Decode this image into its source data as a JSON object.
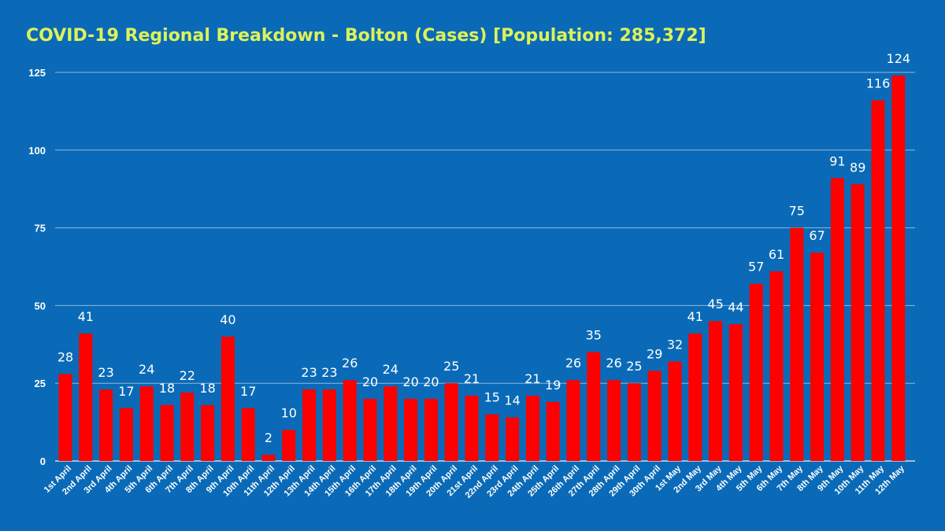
{
  "chart_data": {
    "type": "bar",
    "title": "COVID-19 Regional Breakdown - Bolton (Cases) [Population: 285,372]",
    "xlabel": "",
    "ylabel": "",
    "ylim": [
      0,
      125
    ],
    "yticks": [
      0,
      25,
      50,
      75,
      100,
      125
    ],
    "grid": true,
    "categories": [
      "1st April",
      "2nd April",
      "3rd April",
      "4th April",
      "5th April",
      "6th April",
      "7th April",
      "8th April",
      "9th April",
      "10th April",
      "11th April",
      "12th April",
      "13th April",
      "14th April",
      "15th April",
      "16th April",
      "17th April",
      "18th April",
      "19th April",
      "20th April",
      "21st April",
      "22nd April",
      "23rd April",
      "24th April",
      "25th April",
      "26th April",
      "27th April",
      "28th April",
      "29th April",
      "30th April",
      "1st May",
      "2nd May",
      "3rd May",
      "4th May",
      "5th May",
      "6th May",
      "7th May",
      "8th May",
      "9th May",
      "10th May",
      "11th May",
      "12th May"
    ],
    "values": [
      28,
      41,
      23,
      17,
      24,
      18,
      22,
      18,
      40,
      17,
      2,
      10,
      23,
      23,
      26,
      20,
      24,
      20,
      20,
      25,
      21,
      15,
      14,
      21,
      19,
      26,
      35,
      26,
      25,
      29,
      32,
      41,
      45,
      44,
      57,
      61,
      75,
      67,
      91,
      89,
      116,
      124
    ],
    "colors": {
      "background": "#0a6ab7",
      "bar": "#ff0000",
      "grid": "#8fb9dd",
      "title": "#ddf25a",
      "text": "#ffffff"
    }
  }
}
